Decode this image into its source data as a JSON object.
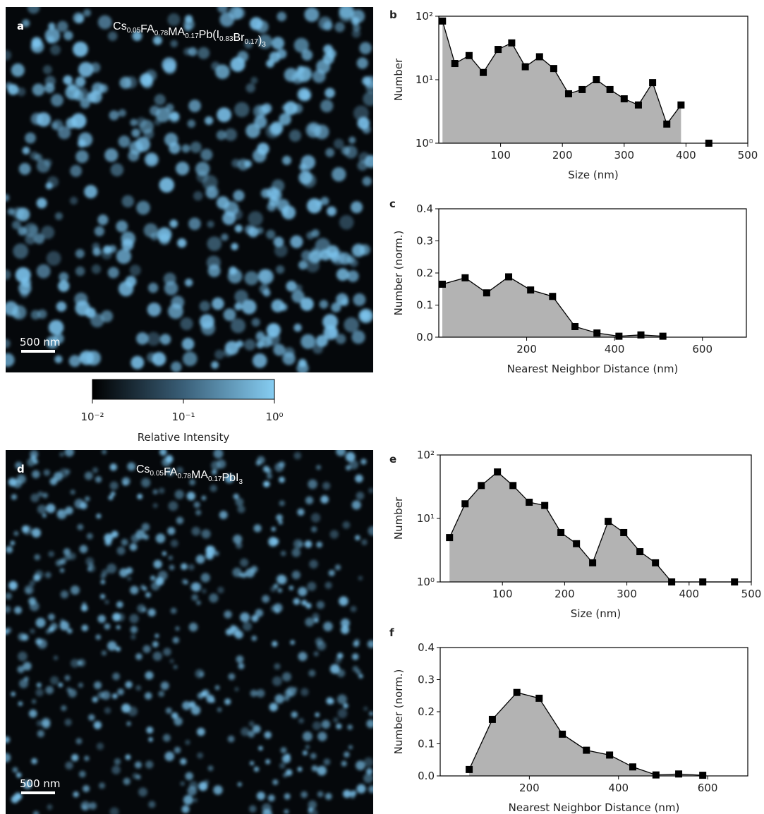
{
  "images": [
    {
      "label": "a",
      "title": [
        [
          "Cs",
          "0.05"
        ],
        [
          "FA",
          "0.78"
        ],
        [
          "MA",
          "0.17"
        ],
        [
          "Pb(I",
          "0.83"
        ],
        [
          "Br",
          "0.17"
        ],
        [
          ")",
          "3"
        ]
      ],
      "scale_bar": "500 nm"
    },
    {
      "label": "d",
      "title": [
        [
          "Cs",
          "0.05"
        ],
        [
          "FA",
          "0.78"
        ],
        [
          "MA",
          "0.17"
        ],
        [
          "PbI",
          "3"
        ]
      ],
      "scale_bar": "500 nm"
    }
  ],
  "colorbar": {
    "label": "Relative Intensity",
    "lim": [
      0.01,
      1
    ],
    "ticks": [
      {
        "value": 0.01,
        "label": "10⁻²"
      },
      {
        "value": 0.1,
        "label": "10⁻¹"
      },
      {
        "value": 1,
        "label": "10⁰"
      }
    ]
  },
  "chart_data": [
    {
      "type": "line",
      "panel": "b",
      "xlabel": "Size (nm)",
      "ylabel": "Number",
      "log_y": true,
      "fill": "#b3b3b3",
      "color": "#000000",
      "x": [
        6,
        26,
        49,
        72,
        96,
        118,
        140,
        163,
        186,
        210,
        232,
        255,
        277,
        300,
        323,
        346,
        369,
        392,
        415,
        437
      ],
      "values": [
        84,
        18,
        24,
        13,
        30,
        38,
        16,
        23,
        15,
        6,
        7,
        10,
        7,
        5,
        4,
        9,
        2,
        4,
        null,
        1
      ],
      "xlim": [
        0,
        500
      ],
      "xticks": [
        100,
        200,
        300,
        400,
        500
      ],
      "ylim": [
        1,
        100
      ],
      "yticks": [
        {
          "value": 1,
          "label": "10⁰"
        },
        {
          "value": 10,
          "label": "10¹"
        },
        {
          "value": 100,
          "label": "10²"
        }
      ]
    },
    {
      "type": "line",
      "panel": "c",
      "xlabel": "Nearest Neighbor Distance (nm)",
      "ylabel": "Number (norm.)",
      "fill": "#b3b3b3",
      "color": "#000000",
      "x": [
        8,
        60,
        109,
        159,
        209,
        259,
        310,
        360,
        410,
        460,
        510
      ],
      "values": [
        0.165,
        0.185,
        0.138,
        0.188,
        0.147,
        0.127,
        0.033,
        0.013,
        0.003,
        0.007,
        0.003
      ],
      "xlim": [
        0,
        700
      ],
      "xticks": [
        200,
        400,
        600
      ],
      "ylim": [
        0,
        0.4
      ],
      "yticks": [
        {
          "value": 0,
          "label": "0.0"
        },
        0.1,
        0.2,
        0.3,
        0.4
      ]
    },
    {
      "type": "line",
      "panel": "e",
      "xlabel": "Size (nm)",
      "ylabel": "Number",
      "log_y": true,
      "fill": "#b3b3b3",
      "color": "#000000",
      "x": [
        15,
        40,
        66,
        92,
        117,
        143,
        168,
        194,
        219,
        245,
        270,
        295,
        321,
        346,
        372,
        422,
        473
      ],
      "values": [
        5,
        17,
        33,
        54,
        33,
        18,
        16,
        6,
        4,
        2,
        9,
        6,
        3,
        2,
        1,
        1,
        1
      ],
      "xlim": [
        0,
        500
      ],
      "xticks": [
        100,
        200,
        300,
        400,
        500
      ],
      "ylim": [
        1,
        100
      ],
      "yticks": [
        {
          "value": 1,
          "label": "10⁰"
        },
        {
          "value": 10,
          "label": "10¹"
        },
        {
          "value": 100,
          "label": "10²"
        }
      ]
    },
    {
      "type": "line",
      "panel": "f",
      "xlabel": "Nearest Neighbor Distance (nm)",
      "ylabel": "Number (norm.)",
      "fill": "#b3b3b3",
      "color": "#000000",
      "x": [
        65,
        117,
        172,
        222,
        274,
        328,
        380,
        432,
        484,
        535,
        589
      ],
      "values": [
        0.02,
        0.176,
        0.26,
        0.242,
        0.13,
        0.08,
        0.065,
        0.028,
        0.003,
        0.006,
        0.002
      ],
      "xlim": [
        0,
        690
      ],
      "xticks": [
        200,
        400,
        600
      ],
      "ylim": [
        0,
        0.4
      ],
      "yticks": [
        {
          "value": 0,
          "label": "0.0"
        },
        0.1,
        0.2,
        0.3,
        0.4
      ]
    }
  ]
}
